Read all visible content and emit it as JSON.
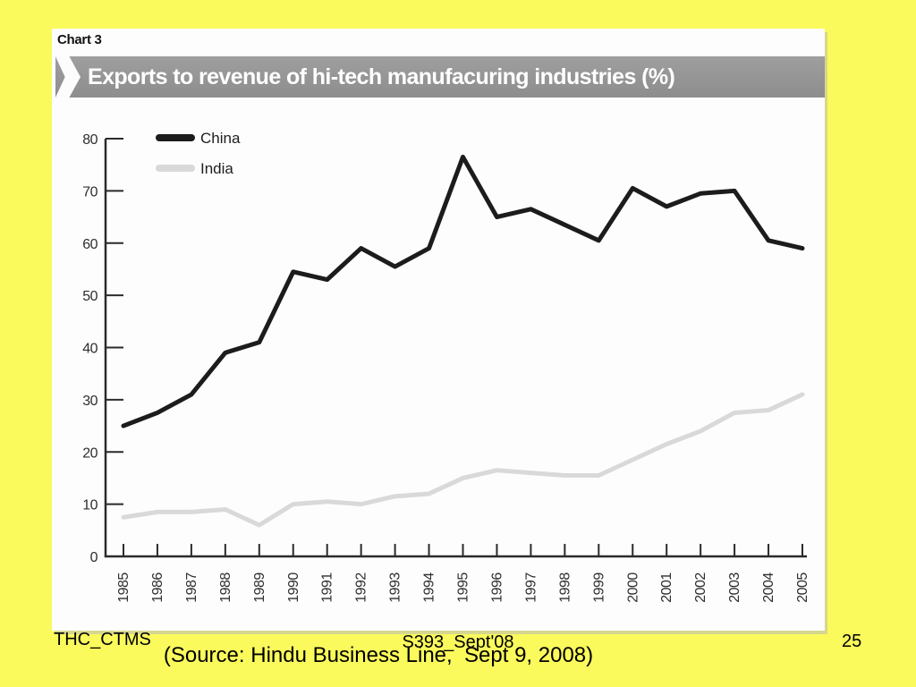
{
  "panel": {
    "chart_label": "Chart 3",
    "title": "Exports to revenue of hi-tech manufacuring industries (%)"
  },
  "chart_data": {
    "type": "line",
    "title": "Exports to revenue of hi-tech manufacuring industries (%)",
    "x": [
      "1985",
      "1986",
      "1987",
      "1988",
      "1989",
      "1990",
      "1991",
      "1992",
      "1993",
      "1994",
      "1995",
      "1996",
      "1997",
      "1998",
      "1999",
      "2000",
      "2001",
      "2002",
      "2003",
      "2004",
      "2005"
    ],
    "series": [
      {
        "name": "China",
        "color": "#1c1c1c",
        "values": [
          25,
          27.5,
          31,
          39,
          41,
          54.5,
          53,
          59,
          55.5,
          59,
          76.5,
          65,
          66.5,
          63.5,
          60.5,
          70.5,
          67,
          69.5,
          70,
          60.5,
          59
        ]
      },
      {
        "name": "India",
        "color": "#d9d9d9",
        "values": [
          7.5,
          8.5,
          8.5,
          9,
          6,
          10,
          10.5,
          10,
          11.5,
          12,
          15,
          16.5,
          16,
          15.5,
          15.5,
          18.5,
          21.5,
          24,
          27.5,
          28,
          31
        ]
      }
    ],
    "ylim": [
      0,
      80
    ],
    "yticks": [
      0,
      10,
      20,
      30,
      40,
      50,
      60,
      70,
      80
    ],
    "xlabel": "",
    "ylabel": "",
    "grid": false,
    "legend_position": "top-left"
  },
  "footer": {
    "left": "THC_CTMS",
    "center": "S393_Sept'08",
    "page": "25",
    "source": "(Source: Hindu Business Line,  Sept 9, 2008)"
  },
  "colors": {
    "slide_background": "#FAFA5C",
    "axis": "#2b2b2b",
    "title_bar": "#979797"
  }
}
